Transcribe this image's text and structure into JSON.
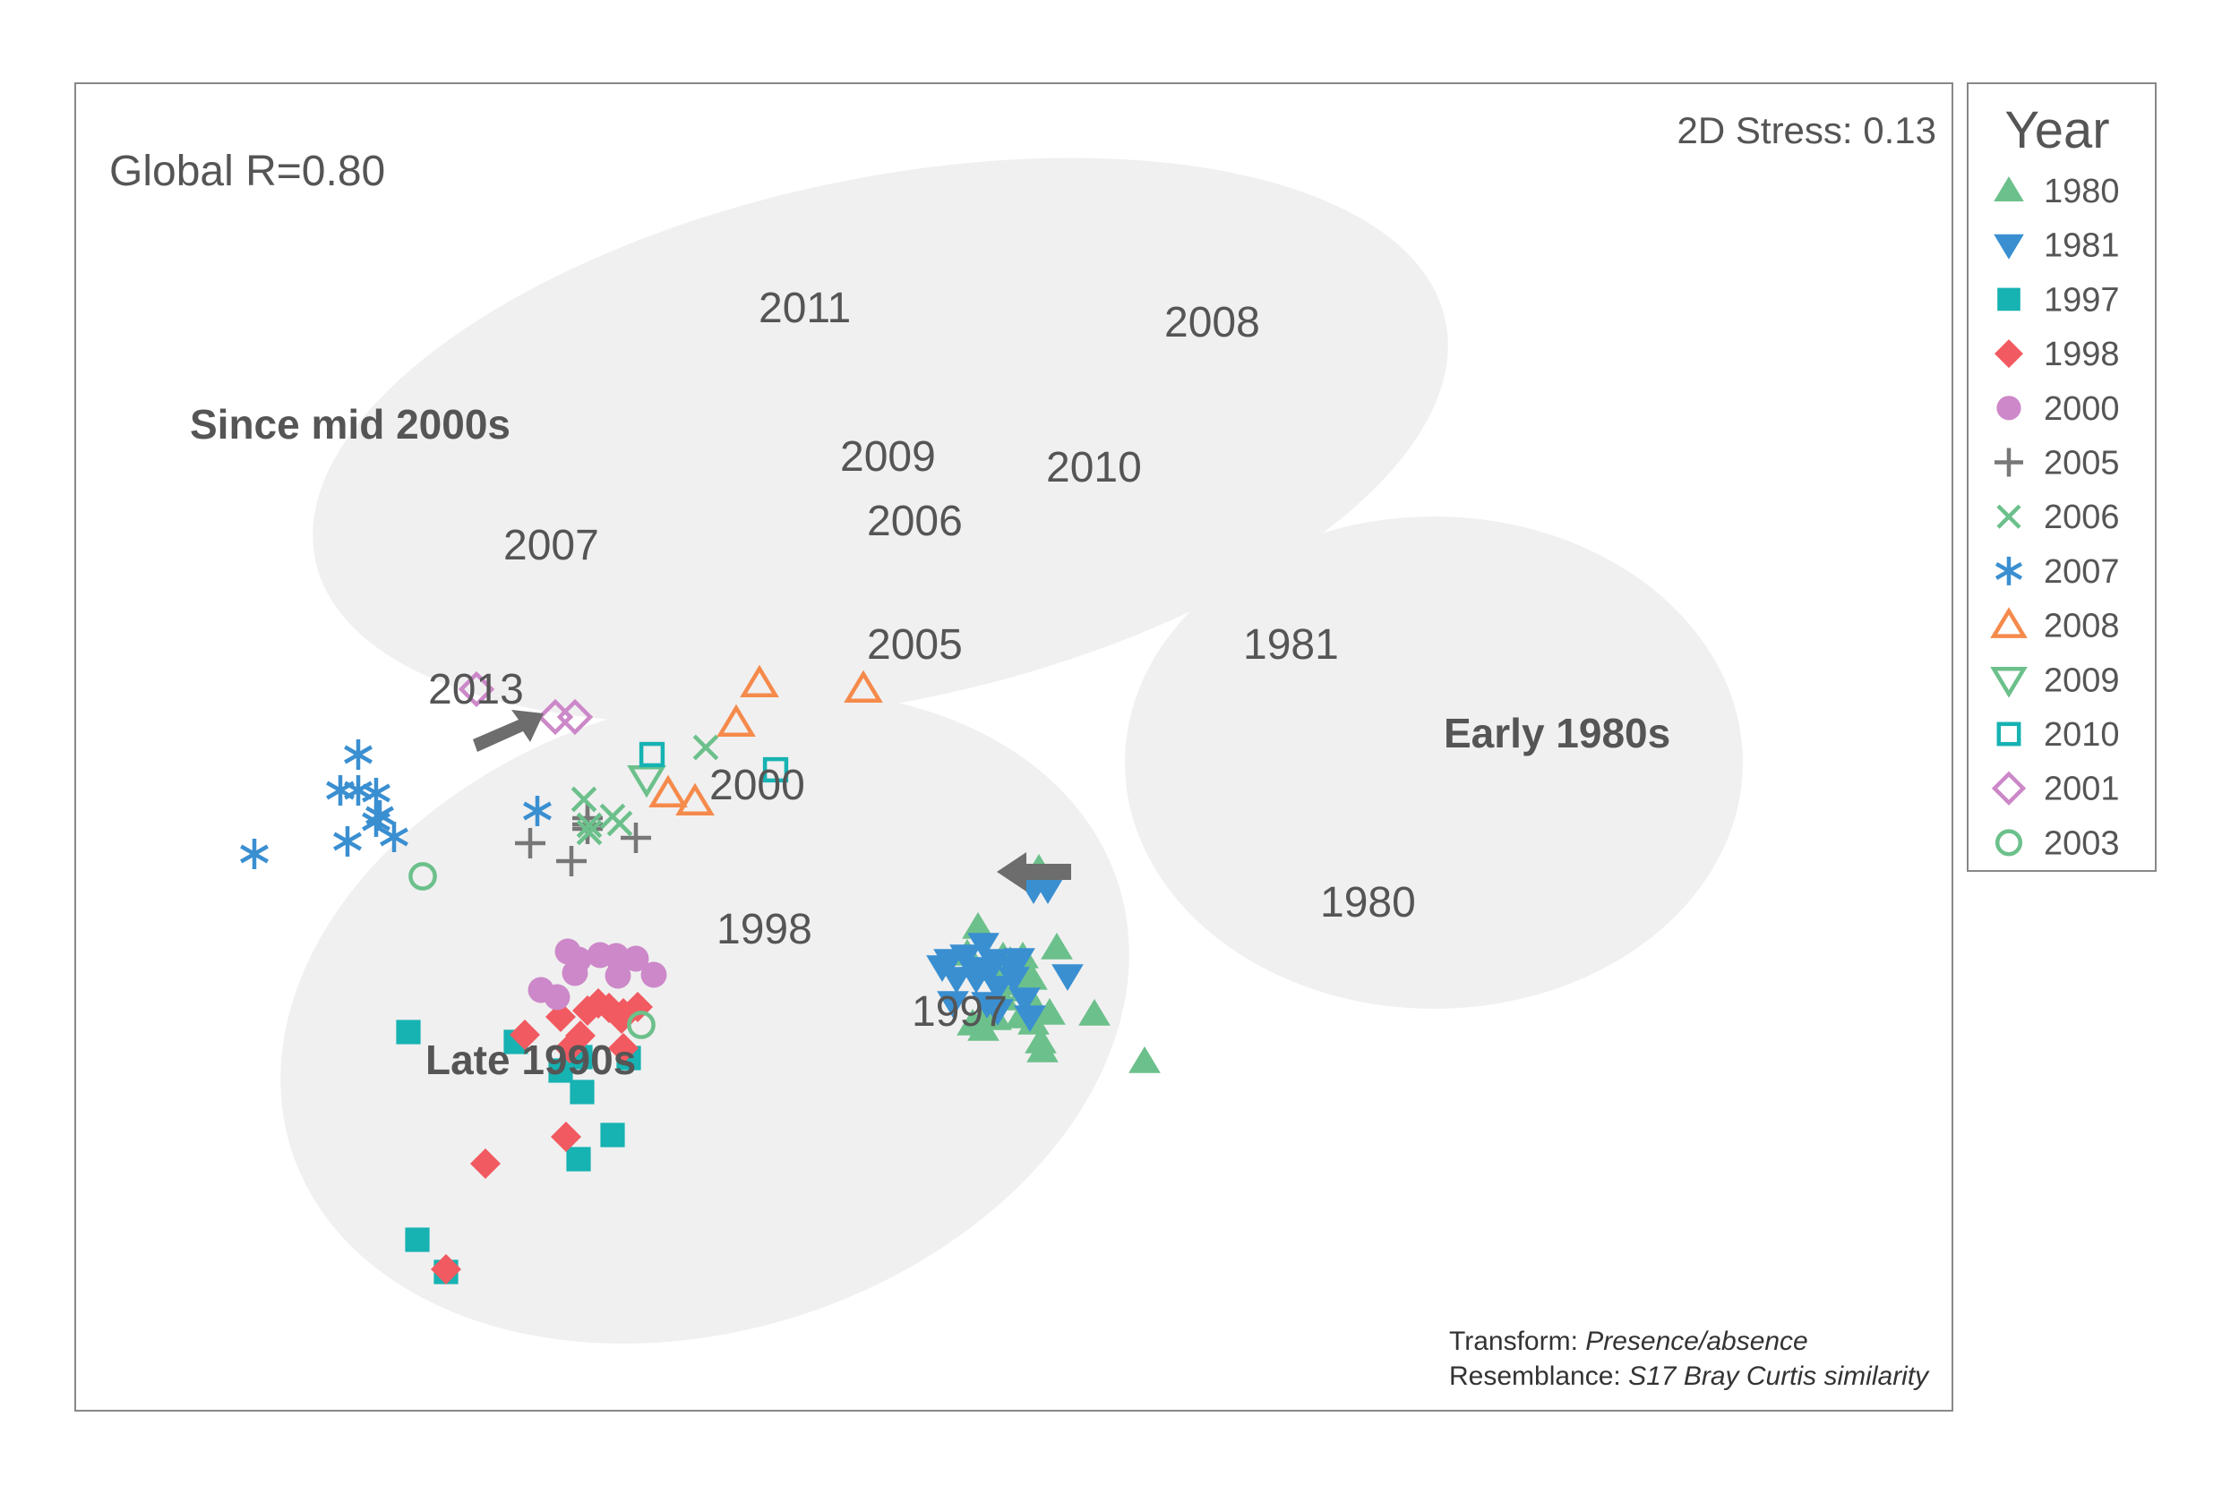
{
  "chart_data": {
    "type": "scatter",
    "title": "",
    "stats": {
      "global_r": "Global R=0.80",
      "stress": "2D Stress: 0.13"
    },
    "legend": {
      "title": "Year",
      "placement": "right",
      "entries": [
        {
          "label": "1980",
          "marker": "triangle-up-filled",
          "color": "#6cc08b"
        },
        {
          "label": "1981",
          "marker": "triangle-down-filled",
          "color": "#3a8fd1"
        },
        {
          "label": "1997",
          "marker": "square-filled",
          "color": "#17b2b2"
        },
        {
          "label": "1998",
          "marker": "diamond-filled",
          "color": "#f15a60"
        },
        {
          "label": "2000",
          "marker": "circle-filled",
          "color": "#cc88c8"
        },
        {
          "label": "2005",
          "marker": "plus",
          "color": "#777777"
        },
        {
          "label": "2006",
          "marker": "x",
          "color": "#6cc08b"
        },
        {
          "label": "2007",
          "marker": "asterisk",
          "color": "#3a8fd1"
        },
        {
          "label": "2008",
          "marker": "triangle-up-open",
          "color": "#f58a4b"
        },
        {
          "label": "2009",
          "marker": "triangle-down-open",
          "color": "#6cc08b"
        },
        {
          "label": "2010",
          "marker": "square-open",
          "color": "#17b2b2"
        },
        {
          "label": "2001",
          "marker": "diamond-open",
          "color": "#cc88c8"
        },
        {
          "label": "2003",
          "marker": "circle-open",
          "color": "#6cc08b"
        }
      ]
    },
    "groups": [
      {
        "label": "Since mid 2000s"
      },
      {
        "label": "Late 1990s"
      },
      {
        "label": "Early 1980s"
      }
    ],
    "point_labels": [
      "2011",
      "2008",
      "2009",
      "2010",
      "2006",
      "2007",
      "2005",
      "2013",
      "2000",
      "1998",
      "1997",
      "1981",
      "1980"
    ],
    "footnote": {
      "transform_label": "Transform: ",
      "transform_value": "Presence/absence",
      "resemblance_label": "Resemblance: ",
      "resemblance_value": "S17 Bray Curtis similarity"
    },
    "grid": false,
    "series": [
      {
        "name": "1980",
        "points": [
          [
            10.76,
            6.05
          ],
          [
            10.08,
            5.4
          ],
          [
            10.96,
            5.17
          ],
          [
            9.96,
            5.1
          ],
          [
            10.36,
            5.07
          ],
          [
            10.44,
            5.02
          ],
          [
            10.58,
            5.07
          ],
          [
            10.28,
            4.93
          ],
          [
            10.5,
            4.92
          ],
          [
            10.68,
            4.83
          ],
          [
            10.46,
            4.77
          ],
          [
            10.6,
            4.7
          ],
          [
            10.36,
            4.6
          ],
          [
            10.7,
            4.53
          ],
          [
            10.88,
            4.44
          ],
          [
            10.56,
            4.4
          ],
          [
            11.38,
            4.43
          ],
          [
            10.16,
            4.42
          ],
          [
            10.28,
            4.38
          ],
          [
            10.7,
            4.33
          ],
          [
            10.02,
            4.32
          ],
          [
            10.14,
            4.26
          ],
          [
            10.78,
            4.12
          ],
          [
            10.8,
            4.02
          ],
          [
            11.94,
            3.9
          ]
        ]
      },
      {
        "name": "1981",
        "points": [
          [
            10.7,
            5.83
          ],
          [
            10.86,
            5.83
          ],
          [
            10.14,
            5.21
          ],
          [
            9.76,
            5.03
          ],
          [
            9.94,
            5.08
          ],
          [
            10.26,
            5.03
          ],
          [
            10.54,
            5.04
          ],
          [
            9.68,
            4.96
          ],
          [
            10.02,
            4.94
          ],
          [
            10.22,
            4.93
          ],
          [
            10.46,
            4.96
          ],
          [
            9.84,
            4.83
          ],
          [
            10.06,
            4.83
          ],
          [
            10.48,
            4.83
          ],
          [
            11.08,
            4.86
          ],
          [
            10.3,
            4.73
          ],
          [
            9.8,
            4.56
          ],
          [
            10.18,
            4.55
          ],
          [
            10.6,
            4.6
          ],
          [
            10.3,
            4.47
          ],
          [
            10.66,
            4.4
          ]
        ]
      },
      {
        "name": "1997",
        "points": [
          [
            3.72,
            4.23
          ],
          [
            4.92,
            4.12
          ],
          [
            5.64,
            3.95
          ],
          [
            5.42,
            3.8
          ],
          [
            6.18,
            3.94
          ],
          [
            5.66,
            3.56
          ],
          [
            6.0,
            3.08
          ],
          [
            5.62,
            2.81
          ],
          [
            3.82,
            1.91
          ],
          [
            4.14,
            1.55
          ]
        ]
      },
      {
        "name": "1998",
        "points": [
          [
            5.84,
            4.55
          ],
          [
            5.72,
            4.47
          ],
          [
            5.96,
            4.5
          ],
          [
            6.28,
            4.51
          ],
          [
            6.12,
            4.44
          ],
          [
            5.42,
            4.4
          ],
          [
            6.1,
            4.38
          ],
          [
            5.02,
            4.2
          ],
          [
            5.64,
            4.19
          ],
          [
            5.52,
            4.05
          ],
          [
            6.12,
            4.05
          ],
          [
            5.48,
            3.06
          ],
          [
            4.58,
            2.76
          ],
          [
            4.14,
            1.58
          ]
        ]
      },
      {
        "name": "2000",
        "points": [
          [
            5.5,
            5.13
          ],
          [
            5.62,
            5.04
          ],
          [
            5.86,
            5.09
          ],
          [
            6.04,
            5.08
          ],
          [
            6.08,
            5.02
          ],
          [
            6.26,
            5.05
          ],
          [
            5.58,
            4.89
          ],
          [
            6.06,
            4.86
          ],
          [
            6.46,
            4.87
          ],
          [
            5.2,
            4.7
          ],
          [
            5.38,
            4.62
          ]
        ]
      },
      {
        "name": "2005",
        "points": [
          [
            5.72,
            6.62
          ],
          [
            5.72,
            6.55
          ],
          [
            5.72,
            6.5
          ],
          [
            6.26,
            6.4
          ],
          [
            5.08,
            6.34
          ],
          [
            5.54,
            6.14
          ]
        ]
      },
      {
        "name": "2006",
        "points": [
          [
            7.04,
            7.41
          ],
          [
            5.68,
            6.83
          ],
          [
            6.0,
            6.64
          ],
          [
            5.74,
            6.54
          ],
          [
            6.08,
            6.56
          ],
          [
            5.74,
            6.46
          ]
        ]
      },
      {
        "name": "2007",
        "points": [
          [
            3.16,
            7.33
          ],
          [
            2.96,
            6.93
          ],
          [
            3.16,
            6.93
          ],
          [
            3.36,
            6.9
          ],
          [
            3.4,
            6.65
          ],
          [
            3.36,
            6.58
          ],
          [
            3.56,
            6.41
          ],
          [
            3.04,
            6.36
          ],
          [
            5.16,
            6.7
          ],
          [
            2.0,
            6.22
          ]
        ]
      },
      {
        "name": "2008",
        "points": [
          [
            7.64,
            8.12
          ],
          [
            8.8,
            8.06
          ],
          [
            7.38,
            7.68
          ],
          [
            6.62,
            6.89
          ],
          [
            6.92,
            6.8
          ]
        ]
      },
      {
        "name": "2009",
        "points": [
          [
            6.38,
            7.06
          ]
        ]
      },
      {
        "name": "2010",
        "points": [
          [
            6.44,
            7.33
          ],
          [
            7.82,
            7.16
          ]
        ]
      },
      {
        "name": "2001",
        "points": [
          [
            4.48,
            8.06
          ],
          [
            5.36,
            7.75
          ],
          [
            5.58,
            7.75
          ]
        ]
      },
      {
        "name": "2003",
        "points": [
          [
            3.88,
            5.97
          ],
          [
            6.32,
            4.31
          ]
        ]
      }
    ]
  }
}
